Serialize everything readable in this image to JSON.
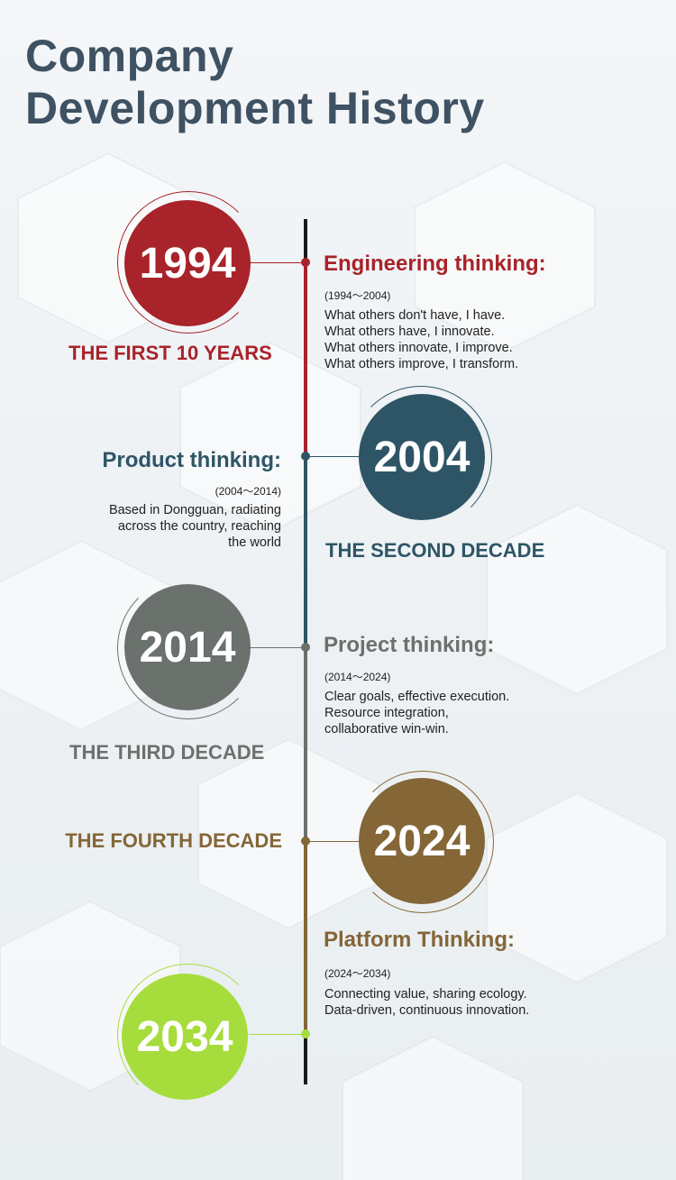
{
  "title": {
    "line1": "Company",
    "line2": "Development History"
  },
  "colors": {
    "title": "#3f5263",
    "red": "#a8232a",
    "teal": "#2e5566",
    "gray": "#6b716c",
    "brown": "#846637",
    "green": "#a6dd3c"
  },
  "milestones": [
    {
      "year": "1994",
      "label": "THE FIRST 10 YEARS",
      "heading": "Engineering thinking:",
      "range": "(1994～2004)",
      "lines": [
        "What others don't have, I have.",
        "What others have, I innovate.",
        "What others innovate, I improve.",
        "What others improve, I transform."
      ]
    },
    {
      "year": "2004",
      "label": "THE SECOND DECADE",
      "heading": "Product thinking:",
      "range": "(2004～2014)",
      "lines": [
        "Based in Dongguan, radiating",
        "across the country, reaching",
        "the world"
      ]
    },
    {
      "year": "2014",
      "label": "THE THIRD DECADE",
      "heading": "Project thinking:",
      "range": "(2014～2024)",
      "lines": [
        "Clear goals, effective execution.",
        "Resource integration,",
        "collaborative win-win."
      ]
    },
    {
      "year": "2024",
      "label": "THE FOURTH DECADE",
      "heading": "Platform Thinking:",
      "range": "(2024～2034)",
      "lines": [
        "Connecting value, sharing ecology.",
        "Data-driven, continuous innovation."
      ]
    },
    {
      "year": "2034"
    }
  ]
}
